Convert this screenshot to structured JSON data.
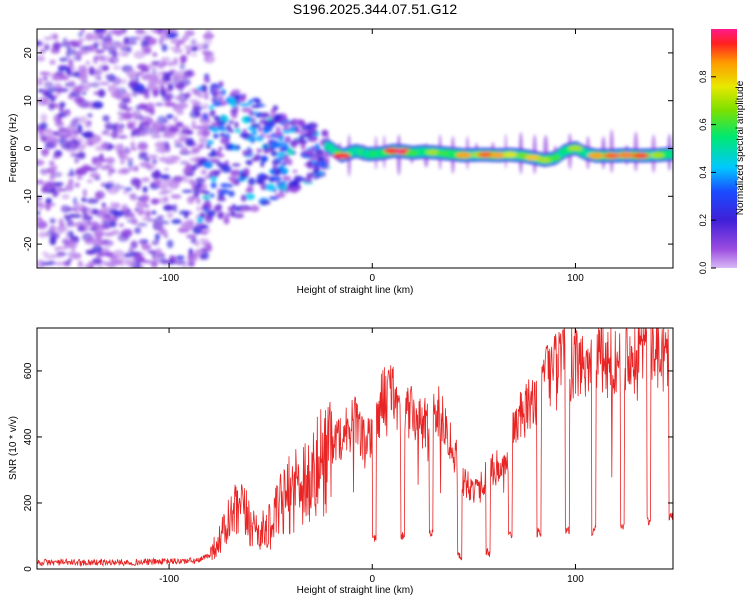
{
  "title": "S196.2025.344.07.51.G12",
  "chart_data": [
    {
      "type": "heatmap",
      "title": "S196.2025.344.07.51.G12",
      "xlabel": "Height of straight line (km)",
      "ylabel": "Frequency (Hz)",
      "xlim": [
        -165,
        148
      ],
      "ylim": [
        -25,
        25
      ],
      "xticks": [
        "-100",
        "0",
        "100"
      ],
      "xtick_values": [
        -100,
        0,
        100
      ],
      "yticks": [
        "20",
        "10",
        "0",
        "-10",
        "-20"
      ],
      "ytick_values": [
        20,
        10,
        0,
        -10,
        -20
      ],
      "colorbar": {
        "label": "Normalized spectral amplitude",
        "range": [
          0,
          1
        ],
        "ticks": [
          "0.0",
          "0.2",
          "0.4",
          "0.6",
          "0.8"
        ],
        "tick_values": [
          0.0,
          0.2,
          0.4,
          0.6,
          0.8
        ]
      },
      "ridge": {
        "description_note": "main signal ridge (km, Hz, amplitude)",
        "points": [
          [
            -22,
            0.5,
            0.35
          ],
          [
            -15,
            -1.5,
            0.95
          ],
          [
            -8,
            -0.5,
            0.45
          ],
          [
            -2,
            -1.2,
            0.5
          ],
          [
            5,
            -1.0,
            0.55
          ],
          [
            10,
            -0.5,
            0.95
          ],
          [
            15,
            -0.6,
            0.98
          ],
          [
            20,
            -0.9,
            0.6
          ],
          [
            25,
            -0.7,
            0.55
          ],
          [
            30,
            -0.8,
            0.7
          ],
          [
            35,
            -1.0,
            0.6
          ],
          [
            40,
            -1.2,
            0.55
          ],
          [
            45,
            -1.4,
            0.85
          ],
          [
            52,
            -1.3,
            0.7
          ],
          [
            56,
            -1.3,
            0.9
          ],
          [
            62,
            -1.4,
            0.85
          ],
          [
            68,
            -1.3,
            0.75
          ],
          [
            74,
            -1.5,
            0.65
          ],
          [
            79,
            -1.9,
            0.8
          ],
          [
            85,
            -2.4,
            0.7
          ],
          [
            90,
            -2.0,
            0.6
          ],
          [
            95,
            -0.5,
            0.55
          ],
          [
            100,
            0.1,
            0.7
          ],
          [
            105,
            -1.0,
            0.5
          ],
          [
            110,
            -1.5,
            0.85
          ],
          [
            118,
            -1.5,
            0.9
          ],
          [
            125,
            -1.4,
            0.88
          ],
          [
            132,
            -1.5,
            0.92
          ],
          [
            140,
            -1.4,
            0.7
          ],
          [
            146,
            -1.2,
            0.5
          ]
        ]
      }
    },
    {
      "type": "line",
      "xlabel": "Height of straight line (km)",
      "ylabel": "SNR (10 * v/v)",
      "xlim": [
        -165,
        148
      ],
      "ylim": [
        0,
        730
      ],
      "xticks": [
        "-100",
        "0",
        "100"
      ],
      "xtick_values": [
        -100,
        0,
        100
      ],
      "yticks": [
        "0",
        "200",
        "400",
        "600"
      ],
      "ytick_values": [
        0,
        200,
        400,
        600
      ],
      "series": [
        {
          "name": "SNR",
          "color": "#e82424",
          "envelope_x": [
            -165,
            -120,
            -85,
            -80,
            -75,
            -70,
            -65,
            -60,
            -55,
            -50,
            -45,
            -40,
            -35,
            -30,
            -25,
            -20,
            -15,
            -10,
            -5,
            0,
            5,
            10,
            15,
            20,
            25,
            30,
            35,
            40,
            45,
            50,
            55,
            60,
            65,
            70,
            75,
            80,
            85,
            90,
            95,
            100,
            105,
            110,
            115,
            120,
            125,
            130,
            135,
            140,
            145,
            148
          ],
          "envelope_y": [
            20,
            20,
            25,
            45,
            90,
            150,
            180,
            140,
            110,
            130,
            190,
            230,
            280,
            260,
            330,
            380,
            400,
            470,
            390,
            390,
            520,
            540,
            470,
            470,
            430,
            480,
            460,
            360,
            260,
            240,
            270,
            310,
            300,
            440,
            470,
            520,
            580,
            620,
            650,
            620,
            620,
            660,
            620,
            650,
            660,
            680,
            690,
            660,
            650,
            630
          ],
          "dips": [
            {
              "x0": 0,
              "x1": 2,
              "y": 90
            },
            {
              "x0": 14,
              "x1": 16,
              "y": 100
            },
            {
              "x0": 28,
              "x1": 30,
              "y": 110
            },
            {
              "x0": 42,
              "x1": 44,
              "y": 40
            },
            {
              "x0": 56,
              "x1": 58,
              "y": 50
            },
            {
              "x0": 67,
              "x1": 69,
              "y": 100
            },
            {
              "x0": 81,
              "x1": 83,
              "y": 110
            },
            {
              "x0": 95,
              "x1": 97,
              "y": 115
            },
            {
              "x0": 108,
              "x1": 110,
              "y": 115
            },
            {
              "x0": 122,
              "x1": 124,
              "y": 130
            },
            {
              "x0": 135,
              "x1": 137,
              "y": 145
            },
            {
              "x0": 146,
              "x1": 148,
              "y": 160
            }
          ]
        }
      ]
    }
  ]
}
